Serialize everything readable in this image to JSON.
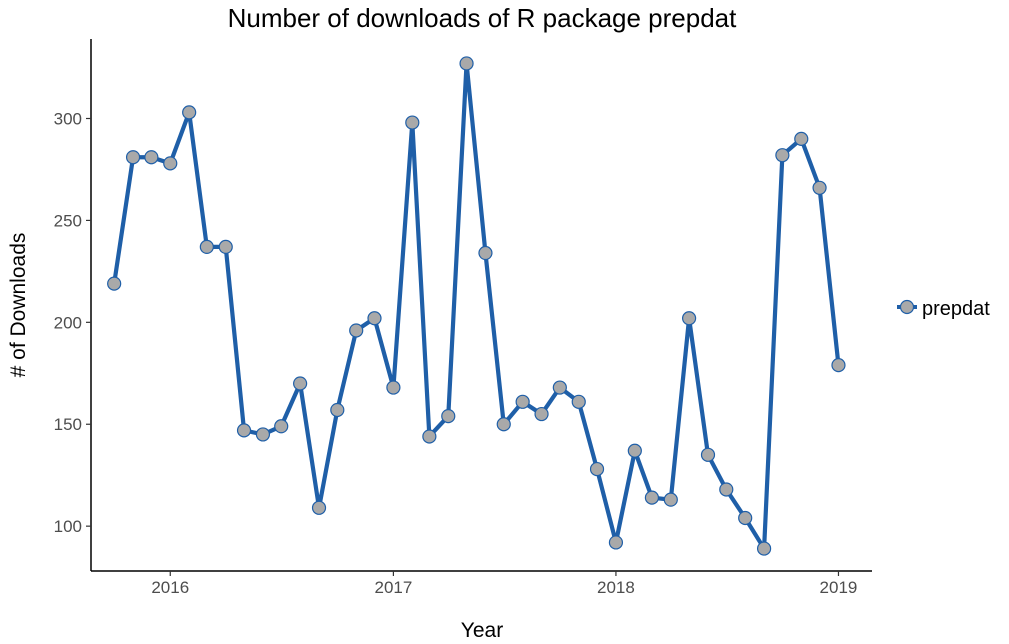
{
  "chart_data": {
    "type": "line",
    "title": "Number of downloads of R package prepdat",
    "xlabel": "Year",
    "ylabel": "# of Downloads",
    "x_axis_type": "date",
    "x_ticks": [
      "2016",
      "2017",
      "2018",
      "2019"
    ],
    "y_ticks": [
      "100",
      "150",
      "200",
      "250",
      "300"
    ],
    "xlim": [
      "2015-08-24",
      "2019-02-25"
    ],
    "ylim": [
      78,
      339
    ],
    "grid": false,
    "legend_position": "right",
    "series": [
      {
        "name": "prepdat",
        "line_color": "#1F5FA8",
        "marker_fill": "#A9A9A9",
        "marker_stroke": "#1F5FA8",
        "points": [
          {
            "x": "2015-10-01",
            "y": 219
          },
          {
            "x": "2015-11-01",
            "y": 281
          },
          {
            "x": "2015-12-01",
            "y": 281
          },
          {
            "x": "2016-01-01",
            "y": 278
          },
          {
            "x": "2016-02-01",
            "y": 303
          },
          {
            "x": "2016-03-01",
            "y": 237
          },
          {
            "x": "2016-04-01",
            "y": 237
          },
          {
            "x": "2016-05-01",
            "y": 147
          },
          {
            "x": "2016-06-01",
            "y": 145
          },
          {
            "x": "2016-07-01",
            "y": 149
          },
          {
            "x": "2016-08-01",
            "y": 170
          },
          {
            "x": "2016-09-01",
            "y": 109
          },
          {
            "x": "2016-10-01",
            "y": 157
          },
          {
            "x": "2016-11-01",
            "y": 196
          },
          {
            "x": "2016-12-01",
            "y": 202
          },
          {
            "x": "2017-01-01",
            "y": 168
          },
          {
            "x": "2017-02-01",
            "y": 298
          },
          {
            "x": "2017-03-01",
            "y": 144
          },
          {
            "x": "2017-04-01",
            "y": 154
          },
          {
            "x": "2017-05-01",
            "y": 327
          },
          {
            "x": "2017-06-01",
            "y": 234
          },
          {
            "x": "2017-07-01",
            "y": 150
          },
          {
            "x": "2017-08-01",
            "y": 161
          },
          {
            "x": "2017-09-01",
            "y": 155
          },
          {
            "x": "2017-10-01",
            "y": 168
          },
          {
            "x": "2017-11-01",
            "y": 161
          },
          {
            "x": "2017-12-01",
            "y": 128
          },
          {
            "x": "2018-01-01",
            "y": 92
          },
          {
            "x": "2018-02-01",
            "y": 137
          },
          {
            "x": "2018-03-01",
            "y": 114
          },
          {
            "x": "2018-04-01",
            "y": 113
          },
          {
            "x": "2018-05-01",
            "y": 202
          },
          {
            "x": "2018-06-01",
            "y": 135
          },
          {
            "x": "2018-07-01",
            "y": 118
          },
          {
            "x": "2018-08-01",
            "y": 104
          },
          {
            "x": "2018-09-01",
            "y": 89
          },
          {
            "x": "2018-10-01",
            "y": 282
          },
          {
            "x": "2018-11-01",
            "y": 290
          },
          {
            "x": "2018-12-01",
            "y": 266
          },
          {
            "x": "2019-01-01",
            "y": 179
          }
        ]
      }
    ]
  }
}
